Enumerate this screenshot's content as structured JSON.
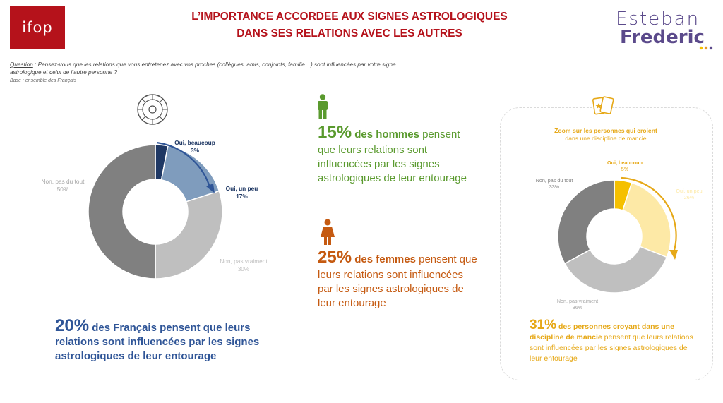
{
  "header": {
    "logo_left": "ifop",
    "title_line1": "L’IMPORTANCE ACCORDEE AUX SIGNES ASTROLOGIQUES",
    "title_line2": "DANS SES RELATIONS AVEC LES AUTRES",
    "brand_line1": "Esteban",
    "brand_line2": "Frederic"
  },
  "question": {
    "label": "Question",
    "text": " : Pensez-vous que les relations que vous entretenez avec vos proches (collègues, amis, conjoints, famille…) sont influencées par votre signe astrologique et celui de l’autre personne ?",
    "base": "Base : ensemble des Français"
  },
  "colors": {
    "title_red": "#b5121b",
    "navy": "#1f3864",
    "blue_mid": "#7f9cbd",
    "grey_light": "#bfbfbf",
    "grey_dark": "#808080",
    "green": "#5a9a2e",
    "orange": "#c55a11",
    "gold": "#f5c000",
    "gold_light": "#fde9a6",
    "purple": "#5b4a8b"
  },
  "chart_data": [
    {
      "type": "pie",
      "donut": true,
      "categories": [
        "Oui, beaucoup",
        "Oui, un peu",
        "Non, pas vraiment",
        "Non, pas du tout"
      ],
      "values": [
        3,
        17,
        30,
        50
      ],
      "value_labels": [
        "3%",
        "17%",
        "30%",
        "50%"
      ]
    },
    {
      "type": "pie",
      "donut": true,
      "title": "Zoom sur les personnes qui croient",
      "subtitle": "dans une discipline de mancie",
      "categories": [
        "Oui, beaucoup",
        "Oui, un peu",
        "Non, pas vraiment",
        "Non, pas du tout"
      ],
      "values": [
        5,
        26,
        36,
        33
      ],
      "value_labels": [
        "5%",
        "26%",
        "36%",
        "33%"
      ]
    }
  ],
  "stats": {
    "french": {
      "pct": "20%",
      "text_bold": " des Français pensent que leurs relations sont influencées par les signes astrologiques de leur entourage"
    },
    "men": {
      "pct": "15%",
      "bold": " des hommes",
      "rest1": " pensent",
      "rest2": "que leurs relations sont influencées par les signes astrologiques de leur entourage"
    },
    "women": {
      "pct": "25%",
      "bold": " des femmes",
      "rest1": " pensent que",
      "rest2": "leurs relations sont influencées par les signes astrologiques de leur entourage"
    },
    "mancie": {
      "pct": "31%",
      "bold": " des personnes croyant dans une discipline de mancie",
      "rest": " pensent que leurs relations sont influencées par les signes astrologiques de leur entourage"
    }
  },
  "icons": [
    "zodiac-wheel-icon",
    "man-icon",
    "woman-icon",
    "tarot-cards-icon"
  ]
}
